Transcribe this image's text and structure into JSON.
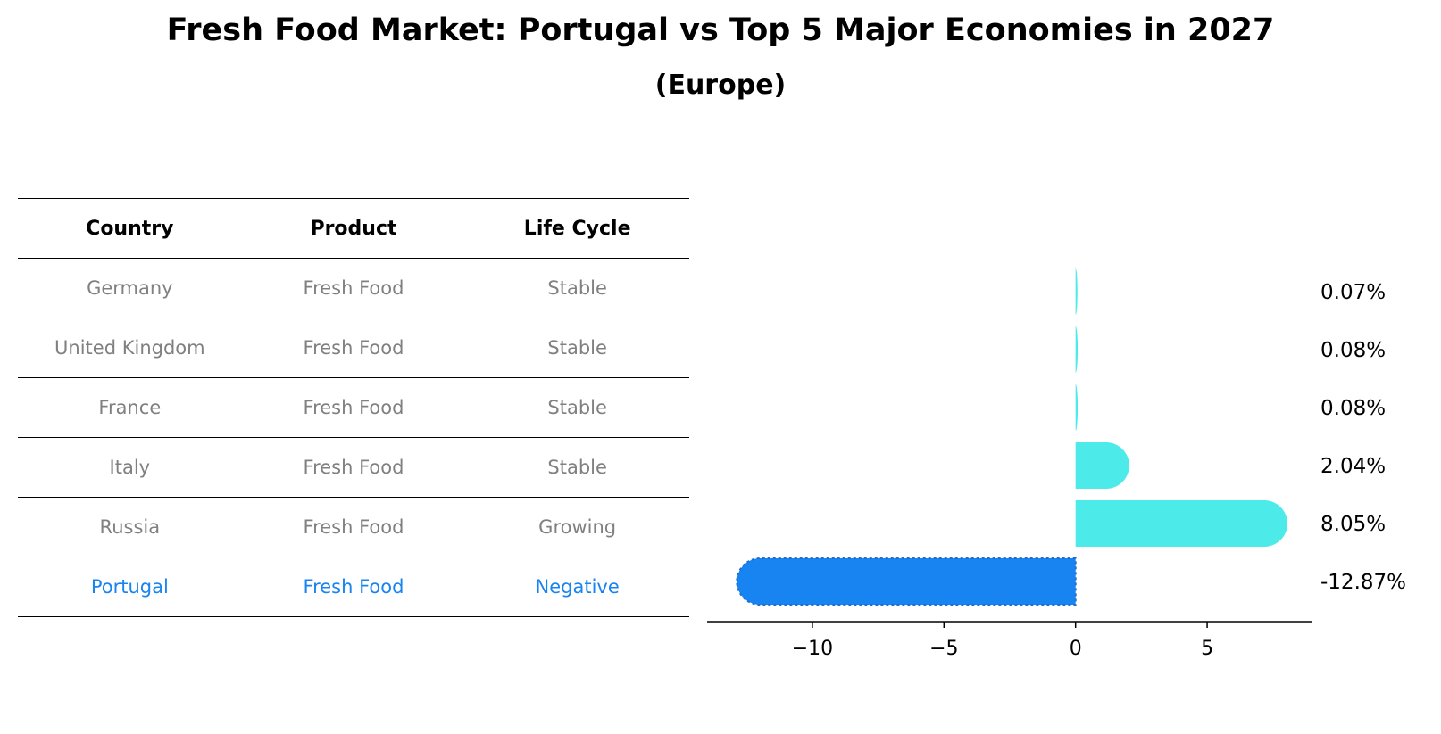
{
  "title": "Fresh Food Market: Portugal vs Top 5 Major Economies in 2027",
  "subtitle": "(Europe)",
  "table": {
    "headers": [
      "Country",
      "Product",
      "Life Cycle"
    ],
    "rows": [
      {
        "country": "Germany",
        "product": "Fresh Food",
        "life_cycle": "Stable"
      },
      {
        "country": "United Kingdom",
        "product": "Fresh Food",
        "life_cycle": "Stable"
      },
      {
        "country": "France",
        "product": "Fresh Food",
        "life_cycle": "Stable"
      },
      {
        "country": "Italy",
        "product": "Fresh Food",
        "life_cycle": "Stable"
      },
      {
        "country": "Russia",
        "product": "Fresh Food",
        "life_cycle": "Growing"
      },
      {
        "country": "Portugal",
        "product": "Fresh Food",
        "life_cycle": "Negative"
      }
    ]
  },
  "colors": {
    "highlight": "#1884f1",
    "bar": "#4ceae8",
    "muted_text": "#808080"
  },
  "chart_data": {
    "type": "bar",
    "orientation": "horizontal",
    "categories": [
      "Germany",
      "United Kingdom",
      "France",
      "Italy",
      "Russia",
      "Portugal"
    ],
    "values": [
      0.07,
      0.08,
      0.08,
      2.04,
      8.05,
      -12.87
    ],
    "labels": [
      "0.07%",
      "0.08%",
      "0.08%",
      "2.04%",
      "8.05%",
      "-12.87%"
    ],
    "xticks": [
      -10,
      -5,
      0,
      5
    ],
    "xtick_labels": [
      "−10",
      "−5",
      "0",
      "5"
    ],
    "xlim": [
      -14,
      9
    ],
    "highlight": "Portugal",
    "title": "",
    "xlabel": "",
    "ylabel": ""
  }
}
